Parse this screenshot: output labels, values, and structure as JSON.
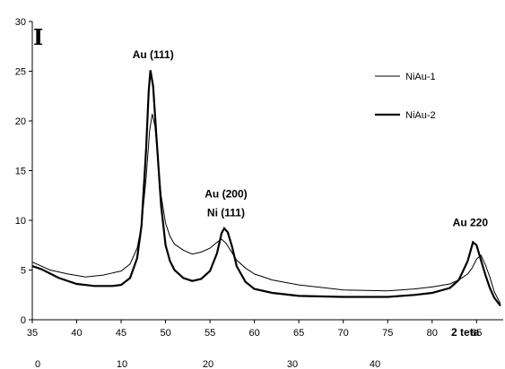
{
  "chart_data": {
    "type": "line",
    "panel_label": "I",
    "xlabel": "2 teta",
    "ylabel": "",
    "xlim": [
      35,
      88
    ],
    "ylim": [
      0,
      30
    ],
    "x_ticks": [
      "35",
      "40",
      "45",
      "50",
      "55",
      "60",
      "65",
      "70",
      "75",
      "80",
      "85"
    ],
    "y_ticks": [
      "0",
      "5",
      "10",
      "15",
      "20",
      "25",
      "30"
    ],
    "secondary_ticks": [
      "0",
      "10",
      "20",
      "30",
      "40"
    ],
    "grid": false,
    "legend_position": "top-right",
    "series": [
      {
        "name": "NiAu-1",
        "x": [
          35,
          37,
          39,
          41,
          43,
          44,
          45,
          46,
          46.8,
          47.3,
          47.8,
          48.2,
          48.5,
          48.8,
          49.1,
          49.5,
          50,
          50.5,
          51,
          52,
          53,
          54,
          55,
          55.8,
          56.3,
          56.8,
          57.3,
          58,
          59,
          60,
          62,
          65,
          70,
          75,
          78,
          80,
          82,
          83,
          84,
          84.5,
          85,
          85.5,
          86,
          86.5,
          87,
          87.7
        ],
        "y": [
          5.8,
          5.0,
          4.6,
          4.3,
          4.5,
          4.7,
          4.9,
          5.6,
          7.2,
          9.5,
          14.2,
          19.0,
          20.7,
          19.5,
          16.5,
          12.5,
          9.7,
          8.4,
          7.6,
          7.0,
          6.6,
          6.8,
          7.2,
          7.8,
          8.1,
          7.7,
          7.0,
          6.0,
          5.2,
          4.6,
          4.0,
          3.5,
          3.0,
          2.9,
          3.1,
          3.3,
          3.6,
          4.0,
          4.6,
          5.2,
          6.1,
          6.5,
          5.5,
          4.3,
          2.8,
          1.6
        ]
      },
      {
        "name": "NiAu-2",
        "x": [
          35,
          36,
          38,
          40,
          42,
          44,
          45,
          46,
          46.8,
          47.3,
          47.8,
          48.1,
          48.3,
          48.6,
          49,
          49.5,
          50,
          50.5,
          51,
          52,
          53,
          54,
          55,
          55.8,
          56.3,
          56.6,
          57,
          57.5,
          58,
          59,
          60,
          62,
          65,
          70,
          75,
          78,
          80,
          82,
          83,
          84,
          84.6,
          85,
          85.5,
          86,
          86.5,
          87,
          87.7
        ],
        "y": [
          5.4,
          5.1,
          4.2,
          3.6,
          3.4,
          3.4,
          3.5,
          4.2,
          6.2,
          9.5,
          17.0,
          23.0,
          25.1,
          23.5,
          18.0,
          11.5,
          7.5,
          5.9,
          5.0,
          4.2,
          3.9,
          4.1,
          4.9,
          6.7,
          8.7,
          9.2,
          8.8,
          7.3,
          5.4,
          3.8,
          3.1,
          2.7,
          2.4,
          2.3,
          2.3,
          2.5,
          2.7,
          3.2,
          4.0,
          5.9,
          7.8,
          7.5,
          6.0,
          4.5,
          3.2,
          2.2,
          1.4
        ]
      }
    ],
    "annotations": [
      {
        "text": "Au (111)",
        "x": 48.6,
        "y": 26.3
      },
      {
        "text": "Au (200)",
        "x": 56.8,
        "y": 12.3
      },
      {
        "text": "Ni (111)",
        "x": 56.8,
        "y": 10.4
      },
      {
        "text": "Au 220",
        "x": 84.3,
        "y": 9.4
      }
    ]
  }
}
